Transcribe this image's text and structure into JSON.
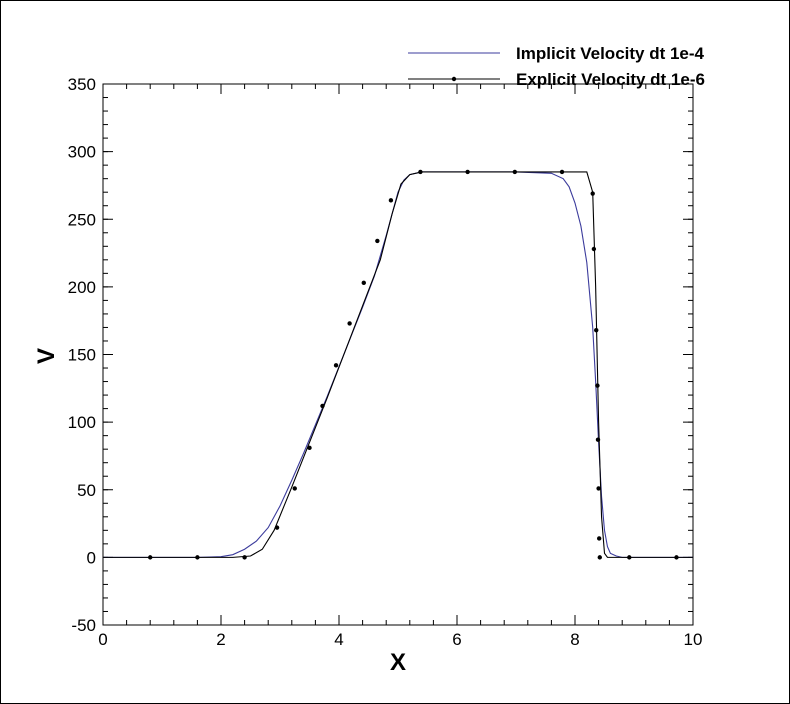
{
  "chart_data": {
    "type": "line",
    "title": "",
    "xlabel": "X",
    "ylabel": "V",
    "xlim": [
      0,
      10
    ],
    "ylim": [
      -50,
      350
    ],
    "x_ticks": [
      0,
      2,
      4,
      6,
      8,
      10
    ],
    "y_ticks": [
      -50,
      0,
      50,
      100,
      150,
      200,
      250,
      300,
      350
    ],
    "x_minor_step": 0.4,
    "y_minor_step": 10,
    "grid": false,
    "legend_position": "top-right",
    "series": [
      {
        "name": "Implicit Velocity dt 1e-4",
        "color": "#3b3b9c",
        "marker": "none",
        "x": [
          0,
          1.6,
          2.0,
          2.2,
          2.4,
          2.6,
          2.8,
          3.0,
          3.2,
          3.4,
          3.6,
          3.8,
          4.0,
          4.2,
          4.4,
          4.6,
          4.8,
          5.0,
          5.1,
          5.2,
          5.4,
          6.0,
          7.0,
          7.6,
          7.8,
          7.9,
          8.0,
          8.1,
          8.2,
          8.3,
          8.35,
          8.4,
          8.45,
          8.5,
          8.55,
          8.6,
          8.7,
          8.8,
          9.0,
          10.0
        ],
        "y": [
          0,
          0,
          0.5,
          2,
          6,
          12,
          22,
          38,
          57,
          77,
          98,
          119,
          141,
          163,
          185,
          208,
          238,
          270,
          279,
          283,
          285,
          285,
          285,
          284,
          280,
          274,
          262,
          245,
          218,
          170,
          130,
          85,
          45,
          20,
          8,
          3,
          1,
          0,
          0,
          0
        ]
      },
      {
        "name": "Explicit Velocity dt 1e-6",
        "color": "#000000",
        "marker": "dot",
        "x": [
          0,
          2.2,
          2.5,
          2.7,
          2.9,
          3.2,
          3.5,
          3.8,
          4.1,
          4.4,
          4.7,
          4.9,
          5.05,
          5.2,
          5.4,
          6.2,
          7.0,
          7.8,
          8.2,
          8.3,
          8.35,
          8.4,
          8.45,
          8.5,
          8.55,
          10.0
        ],
        "y": [
          0,
          0,
          1,
          6,
          20,
          52,
          85,
          118,
          152,
          186,
          220,
          254,
          276,
          283,
          285,
          285,
          285,
          285,
          285,
          270,
          200,
          100,
          30,
          3,
          0,
          0
        ],
        "markers_x": [
          0.8,
          1.6,
          2.4,
          2.95,
          3.25,
          3.5,
          3.72,
          3.95,
          4.18,
          4.42,
          4.65,
          4.88,
          5.38,
          6.18,
          6.98,
          7.78,
          8.3,
          8.32,
          8.36,
          8.38,
          8.39,
          8.4,
          8.41,
          8.42,
          8.92,
          9.72
        ],
        "markers_y": [
          0,
          0,
          0,
          22,
          51,
          81,
          112,
          142,
          173,
          203,
          234,
          264,
          285,
          285,
          285,
          285,
          269,
          228,
          168,
          127,
          87,
          51,
          14,
          0,
          0,
          0
        ]
      }
    ]
  }
}
